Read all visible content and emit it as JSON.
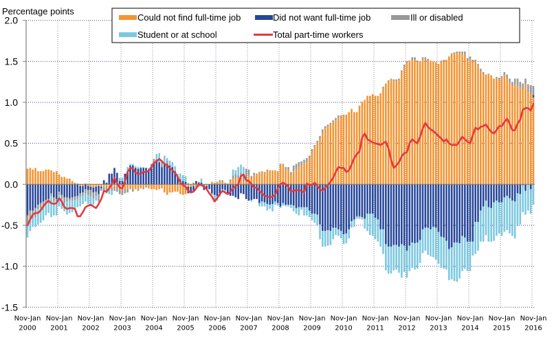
{
  "chart_data": {
    "type": "bar",
    "stacked": true,
    "title": "",
    "ylabel": "Percentage points",
    "xlabel": "",
    "ylim": [
      -1.5,
      2.0
    ],
    "grid": true,
    "legend_position": "top",
    "y_ticks": [
      {
        "value": 2.0,
        "label": "2.0"
      },
      {
        "value": 1.5,
        "label": "1.5"
      },
      {
        "value": 1.0,
        "label": "1.0"
      },
      {
        "value": 0.5,
        "label": "0.5"
      },
      {
        "value": 0.0,
        "label": "0.0"
      },
      {
        "value": -0.5,
        "label": "-0.5"
      },
      {
        "value": -1.0,
        "label": "-1.0"
      },
      {
        "value": -1.5,
        "label": "-1.5"
      }
    ],
    "x_ticks": [
      {
        "index": 0,
        "label": [
          "Nov-Jan",
          "2000"
        ]
      },
      {
        "index": 12,
        "label": [
          "Nov-Jan",
          "2001"
        ]
      },
      {
        "index": 24,
        "label": [
          "Nov-Jan",
          "2002"
        ]
      },
      {
        "index": 36,
        "label": [
          "Nov-Jan",
          "2003"
        ]
      },
      {
        "index": 48,
        "label": [
          "Nov-Jan",
          "2004"
        ]
      },
      {
        "index": 60,
        "label": [
          "Nov-Jan",
          "2005"
        ]
      },
      {
        "index": 72,
        "label": [
          "Nov-Jan",
          "2006"
        ]
      },
      {
        "index": 84,
        "label": [
          "Nov-Jan",
          "2007"
        ]
      },
      {
        "index": 96,
        "label": [
          "Nov-Jan",
          "2008"
        ]
      },
      {
        "index": 108,
        "label": [
          "Nov-Jan",
          "2009"
        ]
      },
      {
        "index": 120,
        "label": [
          "Nov-Jan",
          "2010"
        ]
      },
      {
        "index": 132,
        "label": [
          "Nov-Jan",
          "2011"
        ]
      },
      {
        "index": 144,
        "label": [
          "Nov-Jan",
          "2012"
        ]
      },
      {
        "index": 156,
        "label": [
          "Nov-Jan",
          "2013"
        ]
      },
      {
        "index": 168,
        "label": [
          "Nov-Jan",
          "2014"
        ]
      },
      {
        "index": 180,
        "label": [
          "Nov-Jan",
          "2015"
        ]
      },
      {
        "index": 192,
        "label": [
          "Nov-Jan",
          "2016"
        ]
      }
    ],
    "series": [
      {
        "name": "Could not find full-time job",
        "type": "bar",
        "color": "#F39433",
        "values": [
          0.19,
          0.2,
          0.18,
          0.2,
          0.16,
          0.16,
          0.16,
          0.18,
          0.18,
          0.17,
          0.15,
          0.16,
          0.12,
          0.09,
          0.09,
          0.07,
          0.07,
          0.04,
          0.02,
          0.01,
          -0.02,
          -0.02,
          0.01,
          -0.02,
          -0.03,
          -0.04,
          -0.03,
          -0.02,
          -0.03,
          -0.03,
          -0.03,
          -0.03,
          -0.04,
          -0.03,
          -0.03,
          -0.06,
          -0.07,
          -0.06,
          -0.06,
          -0.05,
          -0.06,
          -0.06,
          -0.07,
          -0.05,
          -0.04,
          -0.04,
          -0.05,
          -0.06,
          -0.06,
          -0.07,
          -0.06,
          -0.05,
          -0.1,
          -0.13,
          -0.1,
          -0.1,
          -0.09,
          -0.09,
          -0.12,
          -0.13,
          -0.12,
          -0.03,
          -0.03,
          -0.02,
          -0.04,
          -0.03,
          -0.02,
          -0.01,
          -0.02,
          0.0,
          0.03,
          0.02,
          0.03,
          0.03,
          0.03,
          0.02,
          0.01,
          0.04,
          0.07,
          0.07,
          0.07,
          0.07,
          0.04,
          0.07,
          0.11,
          0.07,
          0.11,
          0.12,
          0.14,
          0.16,
          0.13,
          0.18,
          0.17,
          0.17,
          0.17,
          0.16,
          0.24,
          0.25,
          0.18,
          0.17,
          0.11,
          0.16,
          0.18,
          0.21,
          0.23,
          0.26,
          0.27,
          0.32,
          0.4,
          0.46,
          0.51,
          0.55,
          0.63,
          0.68,
          0.71,
          0.73,
          0.76,
          0.78,
          0.82,
          0.82,
          0.85,
          0.85,
          0.88,
          0.92,
          0.88,
          0.88,
          0.96,
          1.01,
          1.03,
          1.08,
          1.08,
          1.1,
          1.08,
          1.08,
          1.1,
          1.17,
          1.23,
          1.26,
          1.29,
          1.26,
          1.26,
          1.27,
          1.37,
          1.43,
          1.48,
          1.51,
          1.52,
          1.52,
          1.51,
          1.48,
          1.53,
          1.53,
          1.51,
          1.51,
          1.5,
          1.49,
          1.47,
          1.49,
          1.52,
          1.52,
          1.56,
          1.6,
          1.59,
          1.6,
          1.6,
          1.6,
          1.58,
          1.51,
          1.53,
          1.5,
          1.5,
          1.46,
          1.38,
          1.34,
          1.34,
          1.35,
          1.33,
          1.29,
          1.29,
          1.27,
          1.3,
          1.34,
          1.29,
          1.24,
          1.2,
          1.22,
          1.2,
          1.18,
          1.16,
          1.22,
          1.13,
          1.11,
          1.06
        ]
      },
      {
        "name": "Did not want full-time job",
        "type": "bar",
        "color": "#27479A",
        "values": [
          -0.38,
          -0.32,
          -0.32,
          -0.29,
          -0.25,
          -0.23,
          -0.21,
          -0.19,
          -0.18,
          -0.11,
          -0.16,
          -0.18,
          -0.09,
          -0.13,
          -0.16,
          -0.16,
          -0.17,
          -0.16,
          -0.15,
          -0.14,
          -0.09,
          -0.08,
          -0.06,
          -0.05,
          -0.04,
          -0.06,
          -0.06,
          -0.1,
          -0.02,
          0.05,
          0.02,
          0.13,
          0.13,
          0.2,
          0.14,
          0.04,
          0.04,
          0.13,
          0.16,
          0.23,
          0.23,
          0.2,
          0.19,
          0.2,
          0.2,
          0.2,
          0.18,
          0.21,
          0.27,
          0.3,
          0.27,
          0.21,
          0.25,
          0.25,
          0.23,
          0.21,
          0.16,
          0.1,
          0.06,
          0.04,
          0.03,
          -0.08,
          -0.07,
          -0.06,
          0.04,
          0.02,
          0.02,
          -0.06,
          -0.04,
          -0.06,
          -0.11,
          -0.13,
          -0.14,
          -0.11,
          -0.06,
          -0.07,
          -0.11,
          -0.14,
          -0.14,
          -0.16,
          -0.18,
          -0.11,
          -0.12,
          -0.18,
          -0.2,
          -0.19,
          -0.18,
          -0.18,
          -0.23,
          -0.21,
          -0.22,
          -0.24,
          -0.25,
          -0.24,
          -0.21,
          -0.23,
          -0.27,
          -0.23,
          -0.25,
          -0.25,
          -0.25,
          -0.26,
          -0.29,
          -0.28,
          -0.28,
          -0.28,
          -0.28,
          -0.32,
          -0.36,
          -0.36,
          -0.37,
          -0.49,
          -0.57,
          -0.57,
          -0.56,
          -0.57,
          -0.53,
          -0.53,
          -0.55,
          -0.57,
          -0.61,
          -0.6,
          -0.55,
          -0.45,
          -0.43,
          -0.39,
          -0.39,
          -0.4,
          -0.42,
          -0.36,
          -0.36,
          -0.36,
          -0.41,
          -0.43,
          -0.55,
          -0.55,
          -0.73,
          -0.76,
          -0.76,
          -0.74,
          -0.74,
          -0.76,
          -0.73,
          -0.75,
          -0.81,
          -0.75,
          -0.71,
          -0.72,
          -0.71,
          -0.68,
          -0.55,
          -0.53,
          -0.53,
          -0.55,
          -0.52,
          -0.53,
          -0.58,
          -0.64,
          -0.65,
          -0.69,
          -0.79,
          -0.77,
          -0.71,
          -0.71,
          -0.72,
          -0.63,
          -0.65,
          -0.7,
          -0.7,
          -0.7,
          -0.46,
          -0.46,
          -0.32,
          -0.27,
          -0.2,
          -0.28,
          -0.29,
          -0.22,
          -0.2,
          -0.22,
          -0.22,
          -0.16,
          -0.14,
          -0.17,
          -0.2,
          -0.21,
          -0.11,
          -0.12,
          -0.01,
          -0.08,
          0.0,
          -0.06,
          0.03
        ]
      },
      {
        "name": "Ill or disabled",
        "type": "bar",
        "color": "#999999",
        "values": [
          -0.1,
          -0.11,
          -0.1,
          -0.11,
          -0.05,
          -0.06,
          -0.06,
          -0.05,
          -0.05,
          -0.04,
          -0.05,
          -0.05,
          -0.04,
          -0.05,
          -0.07,
          -0.05,
          -0.03,
          -0.04,
          -0.04,
          -0.04,
          -0.04,
          -0.04,
          -0.05,
          -0.06,
          -0.07,
          -0.07,
          -0.05,
          -0.08,
          -0.03,
          -0.05,
          -0.08,
          -0.04,
          -0.04,
          -0.05,
          -0.06,
          -0.06,
          -0.06,
          -0.05,
          -0.04,
          -0.01,
          -0.03,
          0.0,
          -0.01,
          0.0,
          -0.02,
          0.0,
          0.0,
          0.04,
          0.04,
          0.0,
          0.0,
          0.06,
          0.0,
          0.04,
          0.0,
          0.0,
          0.0,
          0.0,
          0.0,
          0.0,
          0.0,
          0.0,
          0.0,
          0.02,
          0.0,
          0.01,
          0.0,
          0.0,
          0.0,
          0.0,
          0.0,
          0.0,
          0.0,
          0.02,
          0.02,
          0.0,
          0.0,
          0.02,
          0.04,
          0.05,
          0.04,
          0.07,
          0.09,
          0.12,
          0.07,
          0.03,
          0.03,
          0.01,
          0.01,
          0.0,
          0.02,
          0.0,
          0.0,
          0.0,
          0.0,
          0.0,
          0.01,
          0.0,
          0.03,
          0.04,
          0.04,
          0.07,
          0.07,
          0.06,
          0.05,
          0.04,
          0.05,
          0.03,
          0.03,
          0.02,
          0.02,
          0.04,
          0.04,
          0.03,
          0.02,
          0.02,
          0.02,
          0.03,
          0.02,
          0.02,
          0.0,
          0.0,
          0.0,
          0.0,
          0.0,
          -0.01,
          -0.01,
          0.0,
          0.0,
          0.0,
          0.0,
          0.0,
          0.0,
          0.0,
          0.01,
          0.02,
          0.0,
          0.01,
          0.0,
          0.02,
          0.02,
          0.02,
          0.02,
          0.03,
          0.02,
          0.0,
          0.03,
          0.03,
          0.0,
          0.02,
          0.02,
          0.02,
          0.02,
          0.0,
          0.0,
          0.0,
          0.0,
          0.02,
          0.0,
          0.0,
          0.0,
          0.0,
          0.02,
          0.02,
          0.02,
          0.02,
          0.04,
          0.03,
          0.03,
          0.02,
          0.02,
          0.01,
          0.03,
          0.03,
          0.0,
          0.0,
          0.0,
          0.0,
          0.02,
          0.03,
          0.02,
          0.03,
          0.05,
          0.05,
          0.05,
          0.07,
          0.09,
          0.07,
          0.07,
          0.07,
          0.09,
          0.1,
          0.11
        ]
      },
      {
        "name": "Student or at school",
        "type": "bar",
        "color": "#7CC8E0",
        "values": [
          -0.17,
          -0.14,
          -0.1,
          -0.12,
          -0.19,
          -0.18,
          -0.17,
          -0.14,
          -0.12,
          -0.25,
          -0.17,
          -0.15,
          -0.14,
          -0.12,
          -0.1,
          -0.16,
          -0.15,
          -0.14,
          -0.11,
          -0.1,
          -0.12,
          -0.1,
          -0.1,
          -0.11,
          -0.11,
          -0.08,
          -0.06,
          -0.02,
          0.0,
          0.0,
          0.0,
          -0.05,
          -0.05,
          0.0,
          0.0,
          0.04,
          0.04,
          0.0,
          0.05,
          0.02,
          0.02,
          0.02,
          0.02,
          0.01,
          0.01,
          0.0,
          0.02,
          0.0,
          0.0,
          0.07,
          0.11,
          0.03,
          0.1,
          0.03,
          0.06,
          0.06,
          0.06,
          0.03,
          0.07,
          0.07,
          0.07,
          0.02,
          0.0,
          0.0,
          0.0,
          0.0,
          0.05,
          0.0,
          0.0,
          0.0,
          -0.02,
          -0.07,
          -0.06,
          -0.04,
          -0.03,
          -0.03,
          0.0,
          0.0,
          0.07,
          0.05,
          0.1,
          0.1,
          0.08,
          0.0,
          0.0,
          -0.02,
          0.0,
          0.0,
          -0.04,
          -0.06,
          -0.05,
          -0.08,
          -0.05,
          -0.09,
          -0.04,
          -0.03,
          -0.02,
          -0.03,
          -0.02,
          -0.02,
          -0.04,
          -0.07,
          -0.07,
          -0.1,
          -0.03,
          -0.1,
          -0.1,
          -0.08,
          -0.08,
          -0.11,
          -0.13,
          -0.18,
          -0.19,
          -0.19,
          -0.19,
          -0.17,
          -0.14,
          -0.09,
          -0.08,
          -0.09,
          -0.12,
          -0.12,
          -0.11,
          -0.08,
          -0.09,
          -0.02,
          -0.02,
          -0.03,
          -0.12,
          -0.21,
          -0.26,
          -0.27,
          -0.26,
          -0.27,
          -0.21,
          -0.3,
          -0.32,
          -0.33,
          -0.33,
          -0.31,
          -0.3,
          -0.32,
          -0.41,
          -0.32,
          -0.33,
          -0.31,
          -0.31,
          -0.32,
          -0.32,
          -0.28,
          -0.29,
          -0.28,
          -0.33,
          -0.33,
          -0.37,
          -0.39,
          -0.39,
          -0.38,
          -0.38,
          -0.35,
          -0.38,
          -0.39,
          -0.47,
          -0.48,
          -0.43,
          -0.43,
          -0.38,
          -0.36,
          -0.36,
          -0.17,
          -0.39,
          -0.35,
          -0.38,
          -0.43,
          -0.42,
          -0.42,
          -0.41,
          -0.47,
          -0.43,
          -0.38,
          -0.41,
          -0.42,
          -0.42,
          -0.43,
          -0.43,
          -0.45,
          -0.4,
          -0.37,
          -0.33,
          -0.29,
          -0.32,
          -0.3,
          -0.25
        ]
      },
      {
        "name": "Total part-time workers",
        "type": "line",
        "color": "#E4393D",
        "values": [
          -0.5,
          -0.43,
          -0.37,
          -0.35,
          -0.35,
          -0.32,
          -0.27,
          -0.23,
          -0.2,
          -0.23,
          -0.24,
          -0.23,
          -0.17,
          -0.21,
          -0.28,
          -0.3,
          -0.29,
          -0.29,
          -0.3,
          -0.39,
          -0.39,
          -0.34,
          -0.28,
          -0.26,
          -0.25,
          -0.27,
          -0.29,
          -0.24,
          -0.18,
          -0.08,
          -0.09,
          -0.05,
          0.0,
          0.08,
          0.01,
          -0.04,
          -0.05,
          0.04,
          0.15,
          0.2,
          0.19,
          0.14,
          0.13,
          0.13,
          0.15,
          0.15,
          0.16,
          0.21,
          0.26,
          0.28,
          0.31,
          0.28,
          0.25,
          0.23,
          0.2,
          0.17,
          0.14,
          0.09,
          0.02,
          -0.01,
          -0.03,
          -0.08,
          -0.1,
          -0.09,
          -0.05,
          0.0,
          -0.01,
          -0.03,
          -0.06,
          -0.11,
          -0.15,
          -0.21,
          -0.17,
          -0.12,
          -0.08,
          -0.1,
          -0.12,
          -0.09,
          -0.05,
          -0.02,
          0.0,
          0.1,
          0.12,
          0.05,
          0.04,
          0.0,
          -0.04,
          -0.04,
          -0.08,
          -0.11,
          -0.14,
          -0.15,
          -0.16,
          -0.15,
          -0.13,
          -0.05,
          0.0,
          0.02,
          0.0,
          -0.03,
          -0.09,
          -0.08,
          -0.07,
          -0.07,
          -0.08,
          -0.1,
          0.01,
          -0.01,
          -0.01,
          0.02,
          -0.02,
          -0.06,
          -0.08,
          -0.04,
          -0.01,
          0.03,
          0.08,
          0.15,
          0.21,
          0.2,
          0.2,
          0.15,
          0.17,
          0.24,
          0.32,
          0.37,
          0.4,
          0.57,
          0.62,
          0.55,
          0.53,
          0.51,
          0.5,
          0.49,
          0.48,
          0.5,
          0.52,
          0.44,
          0.3,
          0.2,
          0.23,
          0.27,
          0.34,
          0.38,
          0.39,
          0.5,
          0.55,
          0.52,
          0.5,
          0.58,
          0.68,
          0.75,
          0.7,
          0.67,
          0.65,
          0.62,
          0.59,
          0.56,
          0.52,
          0.55,
          0.5,
          0.48,
          0.48,
          0.48,
          0.53,
          0.58,
          0.55,
          0.52,
          0.5,
          0.6,
          0.69,
          0.67,
          0.7,
          0.71,
          0.73,
          0.68,
          0.64,
          0.62,
          0.66,
          0.71,
          0.71,
          0.76,
          0.8,
          0.74,
          0.66,
          0.66,
          0.74,
          0.79,
          0.91,
          0.93,
          0.93,
          0.9,
          0.98
        ]
      }
    ]
  }
}
